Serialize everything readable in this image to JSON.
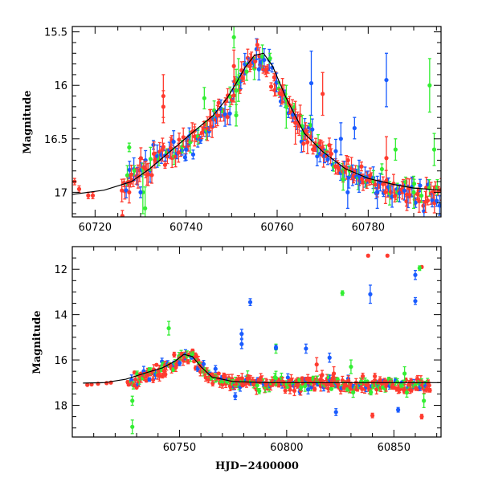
{
  "colors": {
    "red": "#ff3b2f",
    "green": "#33ee33",
    "blue": "#1a5cff",
    "model": "#000000"
  },
  "chart_data": [
    {
      "type": "scatter",
      "title": "",
      "xlabel": "",
      "ylabel": "Magnitude",
      "xlim": [
        60715,
        60796
      ],
      "ylim": [
        17.23,
        15.45
      ],
      "y_inverted": true,
      "xticks": [
        60720,
        60740,
        60760,
        60780
      ],
      "yticks": [
        15.5,
        16,
        16.5,
        17
      ],
      "ytick_labels": [
        "15.5",
        "16",
        "16.5",
        "17"
      ],
      "model_curve": {
        "description_free": true,
        "x": [
          60715,
          60722,
          60728,
          60732,
          60737,
          60742,
          60746,
          60749,
          60751,
          60753,
          60755,
          60757,
          60759,
          60762,
          60766,
          60770,
          60775,
          60780,
          60786,
          60790,
          60796
        ],
        "y": [
          17.02,
          16.98,
          16.9,
          16.78,
          16.6,
          16.42,
          16.28,
          16.12,
          15.98,
          15.83,
          15.72,
          15.7,
          15.82,
          16.12,
          16.45,
          16.62,
          16.78,
          16.87,
          16.93,
          16.96,
          16.98
        ]
      },
      "series": [
        {
          "color": "red",
          "points": [
            [
              60715.5,
              16.9,
              0.03
            ],
            [
              60716.5,
              16.97,
              0.03
            ],
            [
              60718.5,
              17.03,
              0.03
            ],
            [
              60719.5,
              17.03,
              0.03
            ],
            [
              60726,
              17.22,
              0.05
            ],
            [
              60727.5,
              17.0,
              0.1
            ],
            [
              60735,
              16.1,
              0.2
            ],
            [
              60735,
              16.2,
              0.15
            ],
            [
              60750.5,
              15.82,
              0.15
            ],
            [
              60764,
              16.35,
              0.2
            ],
            [
              60770,
              16.08,
              0.2
            ],
            [
              60784,
              16.68,
              0.2
            ],
            [
              60788.5,
              17.02,
              0.15
            ]
          ]
        },
        {
          "color": "green",
          "points": [
            [
              60727.5,
              16.58,
              0.04
            ],
            [
              60730.5,
              17.0,
              0.2
            ],
            [
              60731,
              17.15,
              0.2
            ],
            [
              60744,
              16.12,
              0.1
            ],
            [
              60750.5,
              15.55,
              0.1
            ],
            [
              60751,
              16.05,
              0.2
            ],
            [
              60751.5,
              15.95,
              0.2
            ],
            [
              60751,
              16.28,
              0.1
            ],
            [
              60762,
              16.2,
              0.2
            ],
            [
              60765.5,
              16.38,
              0.1
            ],
            [
              60774.5,
              16.88,
              0.1
            ],
            [
              60786,
              16.6,
              0.1
            ],
            [
              60790,
              17.0,
              0.15
            ],
            [
              60793.5,
              16.0,
              0.25
            ],
            [
              60794.5,
              16.6,
              0.15
            ]
          ]
        },
        {
          "color": "blue",
          "points": [
            [
              60730,
              17.0,
              0.05
            ],
            [
              60740,
              16.6,
              0.1
            ],
            [
              60756,
              15.85,
              0.1
            ],
            [
              60767.5,
              15.98,
              0.3
            ],
            [
              60774,
              16.5,
              0.15
            ],
            [
              60777,
              16.4,
              0.1
            ],
            [
              60784,
              15.95,
              0.25
            ],
            [
              60775.5,
              17.0,
              0.15
            ],
            [
              60778,
              16.85,
              0.15
            ],
            [
              60782,
              17.0,
              0.15
            ]
          ]
        }
      ],
      "dense_band": {
        "x": [
          60726,
          60730,
          60734,
          60738,
          60742,
          60746,
          60750,
          60753,
          60755,
          60757,
          60760,
          60764,
          60768,
          60772,
          60776,
          60780,
          60784,
          60788,
          60792,
          60796
        ],
        "y": [
          16.95,
          16.8,
          16.68,
          16.58,
          16.5,
          16.35,
          16.1,
          15.85,
          15.72,
          15.78,
          16.0,
          16.32,
          16.55,
          16.7,
          16.82,
          16.9,
          16.95,
          17.0,
          17.02,
          17.05
        ],
        "scatter": 0.09,
        "cadence": 0.25,
        "colors": [
          "red",
          "red",
          "red",
          "blue",
          "green",
          "red",
          "blue"
        ]
      }
    },
    {
      "type": "scatter",
      "title": "",
      "xlabel": "HJD−2400000",
      "ylabel": "Magnitude",
      "xlim": [
        60700,
        60872
      ],
      "ylim": [
        19.4,
        11.0
      ],
      "y_inverted": true,
      "xticks": [
        60750,
        60800,
        60850
      ],
      "yticks": [
        12,
        14,
        16,
        18
      ],
      "ytick_labels": [
        "12",
        "14",
        "16",
        "18"
      ],
      "model_curve": {
        "x": [
          60705,
          60715,
          60725,
          60735,
          60742,
          60748,
          60752,
          60756,
          60760,
          60765,
          60775,
          60790,
          60810,
          60840,
          60872
        ],
        "y": [
          17.02,
          17.0,
          16.85,
          16.55,
          16.35,
          16.05,
          15.75,
          15.85,
          16.3,
          16.75,
          16.95,
          17.0,
          17.0,
          17.0,
          17.0
        ]
      },
      "series": [
        {
          "color": "red",
          "points": [
            [
              60838,
              11.4,
              0.05
            ],
            [
              60847,
              11.4,
              0.05
            ],
            [
              60863,
              11.9,
              0.05
            ],
            [
              60840,
              18.45,
              0.1
            ],
            [
              60863,
              18.5,
              0.1
            ],
            [
              60814,
              16.2,
              0.3
            ],
            [
              60822,
              16.6,
              0.3
            ]
          ]
        },
        {
          "color": "green",
          "points": [
            [
              60728,
              18.95,
              0.3
            ],
            [
              60728,
              17.8,
              0.2
            ],
            [
              60745,
              14.6,
              0.3
            ],
            [
              60795,
              15.5,
              0.2
            ],
            [
              60826,
              13.05,
              0.1
            ],
            [
              60862,
              11.95,
              0.1
            ],
            [
              60830,
              16.3,
              0.3
            ],
            [
              60855,
              16.6,
              0.3
            ],
            [
              60864,
              17.8,
              0.3
            ],
            [
              60795,
              16.8,
              0.3
            ]
          ]
        },
        {
          "color": "blue",
          "points": [
            [
              60783,
              13.45,
              0.15
            ],
            [
              60779,
              14.85,
              0.2
            ],
            [
              60779,
              15.3,
              0.2
            ],
            [
              60795,
              15.45,
              0.1
            ],
            [
              60839,
              13.1,
              0.4
            ],
            [
              60860,
              12.25,
              0.2
            ],
            [
              60860,
              13.4,
              0.15
            ],
            [
              60809,
              15.5,
              0.2
            ],
            [
              60823,
              18.3,
              0.15
            ],
            [
              60776,
              17.6,
              0.15
            ],
            [
              60810,
              17.3,
              0.2
            ],
            [
              60852,
              18.2,
              0.1
            ],
            [
              60820,
              15.9,
              0.2
            ]
          ]
        }
      ],
      "dense_band": {
        "x": [
          60726,
          60732,
          60738,
          60744,
          60748,
          60752,
          60756,
          60760,
          60765,
          60770,
          60780,
          60790,
          60800,
          60810,
          60820,
          60830,
          60840,
          60850,
          60860,
          60867
        ],
        "y": [
          17.0,
          16.75,
          16.6,
          16.38,
          16.1,
          15.8,
          15.9,
          16.3,
          16.7,
          16.9,
          17.0,
          17.0,
          17.05,
          17.05,
          17.05,
          17.05,
          17.1,
          17.1,
          17.1,
          17.1
        ],
        "scatter": 0.22,
        "cadence": 0.35,
        "colors": [
          "red",
          "red",
          "red",
          "red",
          "green",
          "blue",
          "red",
          "green"
        ]
      },
      "early_points": {
        "color": "red",
        "points": [
          [
            60707,
            17.1,
            0.03
          ],
          [
            60709,
            17.08,
            0.03
          ],
          [
            60712,
            17.05,
            0.03
          ],
          [
            60716,
            17.02,
            0.03
          ],
          [
            60718,
            17.0,
            0.03
          ]
        ]
      }
    }
  ]
}
